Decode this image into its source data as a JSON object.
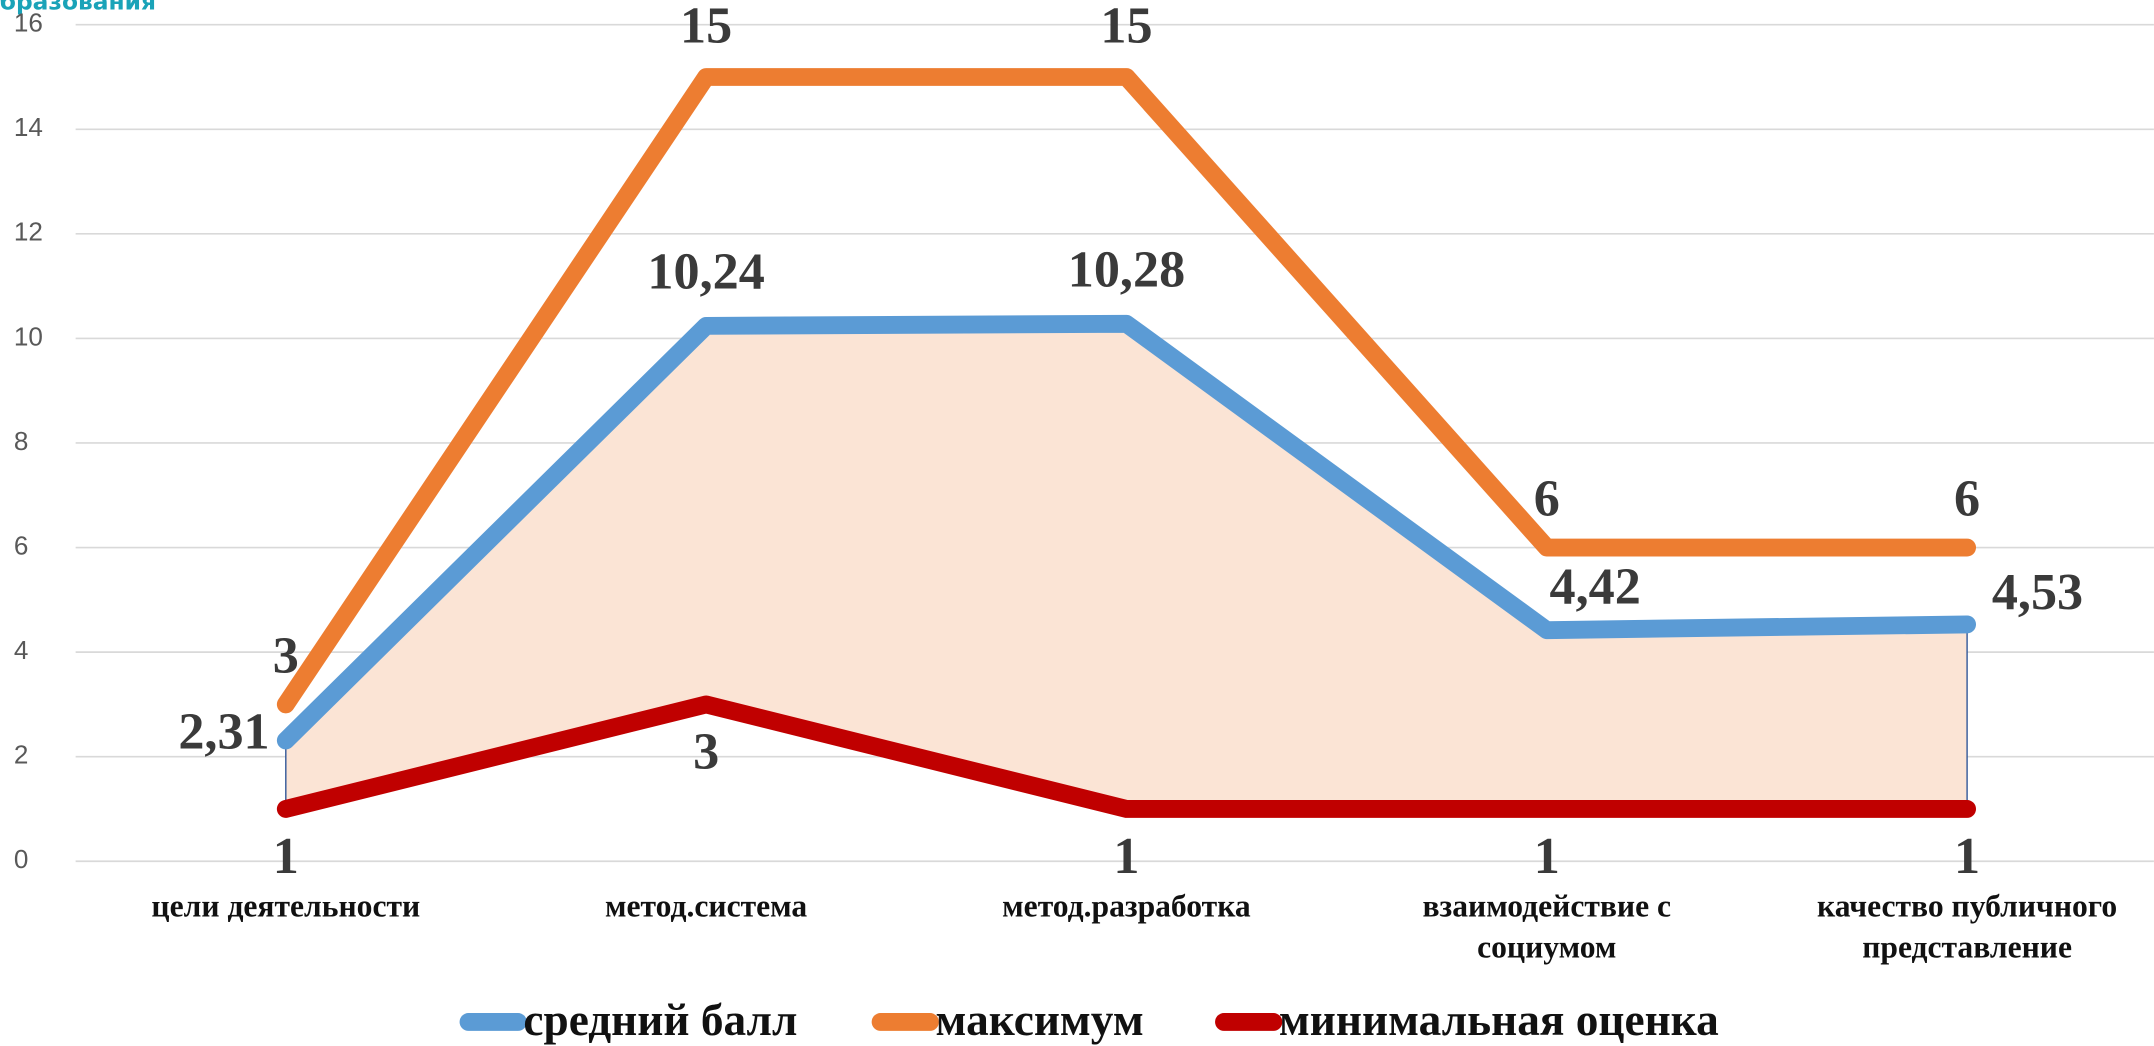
{
  "chart_data": {
    "type": "line",
    "subtitle": "образования",
    "categories": [
      "цели деятельности",
      "метод.система",
      "метод.разработка",
      "взаимодействие с\nсоциумом",
      "качество публичного\nпредставление"
    ],
    "series": [
      {
        "name": "средний балл",
        "color": "#5b9bd5",
        "values": [
          2.31,
          10.24,
          10.28,
          4.42,
          4.53
        ],
        "value_labels": [
          "2,31",
          "10,24",
          "10,28",
          "4,42",
          "4,53"
        ]
      },
      {
        "name": "максимум",
        "color": "#ed7d31",
        "values": [
          3,
          15,
          15,
          6,
          6
        ]
      },
      {
        "name": "минимальная оценка",
        "color": "#c00000",
        "values": [
          1,
          3,
          1,
          1,
          1
        ]
      }
    ],
    "band_color": "#fbe4d5",
    "ylim": [
      0,
      16
    ],
    "yticks": [
      0,
      2,
      4,
      6,
      8,
      10,
      12,
      14,
      16
    ],
    "grid": true,
    "legend": "bottom"
  }
}
